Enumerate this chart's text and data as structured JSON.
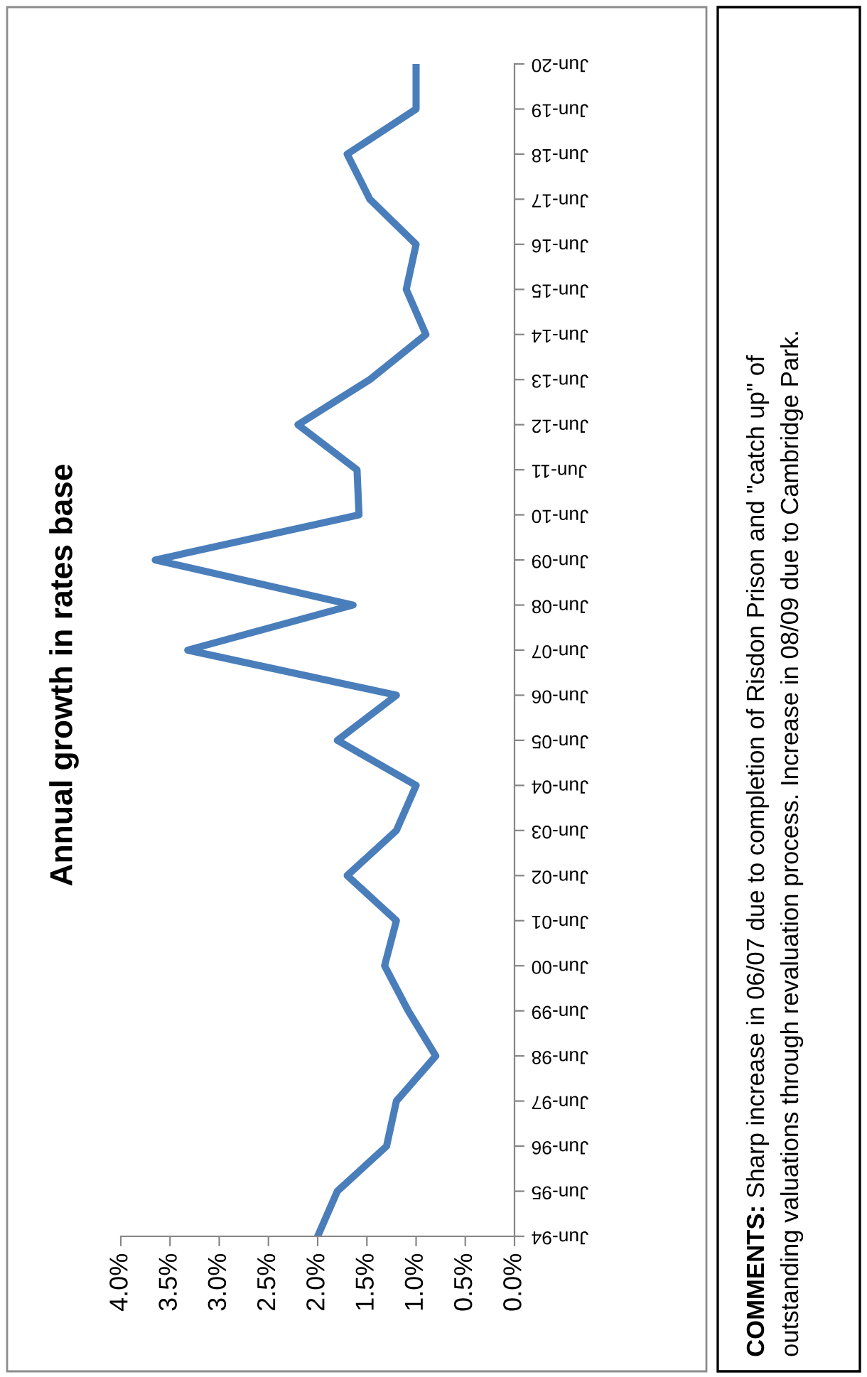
{
  "chart_data": {
    "type": "line",
    "orientation": "horizontal",
    "title": "Annual growth in rates base",
    "categories": [
      "Jun-20",
      "Jun-19",
      "Jun-18",
      "Jun-17",
      "Jun-16",
      "Jun-15",
      "Jun-14",
      "Jun-13",
      "Jun-12",
      "Jun-11",
      "Jun-10",
      "Jun-09",
      "Jun-08",
      "Jun-07",
      "Jun-06",
      "Jun-05",
      "Jun-04",
      "Jun-03",
      "Jun-02",
      "Jun-01",
      "Jun-00",
      "Jun-99",
      "Jun-98",
      "Jun-97",
      "Jun-96",
      "Jun-95",
      "Jun-94"
    ],
    "series": [
      {
        "color": "#4a7ebb",
        "values": [
          1.0,
          1.0,
          1.7,
          1.47,
          1.0,
          1.1,
          0.9,
          1.47,
          2.2,
          1.6,
          1.58,
          3.65,
          1.64,
          3.32,
          1.2,
          1.8,
          1.0,
          1.2,
          1.7,
          1.2,
          1.32,
          1.08,
          0.8,
          1.2,
          1.3,
          1.8,
          2.0
        ]
      }
    ],
    "xlim": [
      4,
      0
    ],
    "xticks": [
      {
        "value": 4,
        "label": "4.0%"
      },
      {
        "value": 3.5,
        "label": "3.5%"
      },
      {
        "value": 3,
        "label": "3.0%"
      },
      {
        "value": 2.5,
        "label": "2.5%"
      },
      {
        "value": 2,
        "label": "2.0%"
      },
      {
        "value": 1.5,
        "label": "1.5%"
      },
      {
        "value": 1,
        "label": "1.0%"
      },
      {
        "value": 0.5,
        "label": "0.5%"
      },
      {
        "value": 0,
        "label": "0.0%"
      }
    ],
    "grid": false,
    "legend": false,
    "marker": "none",
    "line_style": "solid",
    "annotations": [
      "COMMENTS:",
      "Sharp increase in 06/07 due to completion of Risdon Prison and \"catch up\" of\noutstanding valuations through revaluation process. Increase in 08/09 due to Cambridge Park."
    ]
  }
}
